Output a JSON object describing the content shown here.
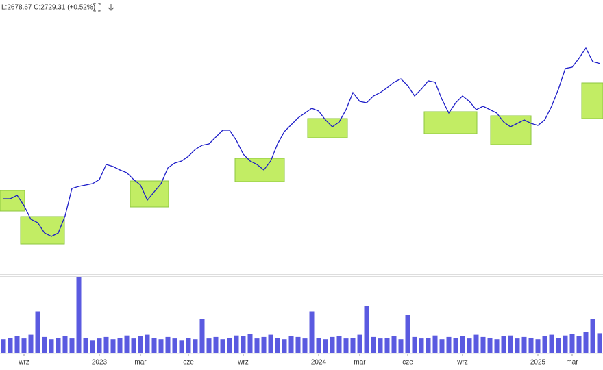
{
  "chart_data": {
    "type": "line",
    "header": "L:2678.67  C:2729.31  (+0.52%)",
    "categories": [
      null,
      null,
      null,
      "wrz",
      null,
      null,
      null,
      null,
      null,
      null,
      null,
      null,
      null,
      null,
      "2023",
      null,
      null,
      null,
      null,
      null,
      "mar",
      null,
      null,
      null,
      null,
      null,
      null,
      "cze",
      null,
      null,
      null,
      null,
      null,
      null,
      null,
      "wrz",
      null,
      null,
      null,
      null,
      null,
      null,
      null,
      null,
      null,
      null,
      "2024",
      null,
      null,
      null,
      null,
      null,
      "mar",
      null,
      null,
      null,
      null,
      null,
      null,
      "cze",
      null,
      null,
      null,
      null,
      null,
      null,
      null,
      "wrz",
      null,
      null,
      null,
      null,
      null,
      null,
      null,
      null,
      null,
      null,
      "2025",
      null,
      null,
      null,
      null,
      "mar",
      null,
      null,
      null,
      null
    ],
    "values": [
      1940,
      1940,
      1960,
      1900,
      1820,
      1800,
      1740,
      1720,
      1740,
      1840,
      2000,
      2012,
      2020,
      2028,
      2052,
      2140,
      2128,
      2108,
      2092,
      2052,
      2020,
      1932,
      1980,
      2028,
      2120,
      2148,
      2160,
      2188,
      2228,
      2252,
      2260,
      2300,
      2340,
      2340,
      2280,
      2200,
      2160,
      2140,
      2108,
      2160,
      2260,
      2332,
      2372,
      2412,
      2440,
      2468,
      2452,
      2400,
      2360,
      2388,
      2460,
      2560,
      2508,
      2500,
      2540,
      2560,
      2588,
      2620,
      2640,
      2600,
      2540,
      2580,
      2628,
      2620,
      2520,
      2440,
      2500,
      2540,
      2508,
      2460,
      2480,
      2460,
      2440,
      2388,
      2360,
      2380,
      2400,
      2380,
      2368,
      2400,
      2480,
      2580,
      2700,
      2708,
      2760,
      2820,
      2740,
      2729.31
    ],
    "color": "#1c1cc8",
    "ylim": [
      1500,
      3100
    ],
    "volume": {
      "type": "bar",
      "color": "#5a5ae0",
      "ylim": [
        0,
        100
      ],
      "values": [
        18,
        20,
        22,
        19,
        24,
        55,
        21,
        18,
        20,
        22,
        19,
        100,
        20,
        17,
        19,
        21,
        18,
        20,
        23,
        19,
        22,
        24,
        20,
        18,
        21,
        19,
        17,
        20,
        18,
        45,
        19,
        21,
        18,
        20,
        23,
        22,
        25,
        19,
        21,
        24,
        20,
        18,
        22,
        21,
        19,
        55,
        20,
        18,
        21,
        22,
        19,
        20,
        24,
        62,
        21,
        19,
        20,
        22,
        18,
        50,
        21,
        19,
        20,
        23,
        18,
        21,
        20,
        22,
        19,
        24,
        21,
        20,
        18,
        22,
        23,
        19,
        21,
        20,
        18,
        22,
        24,
        20,
        23,
        25,
        22,
        28,
        45,
        26
      ]
    }
  }
}
